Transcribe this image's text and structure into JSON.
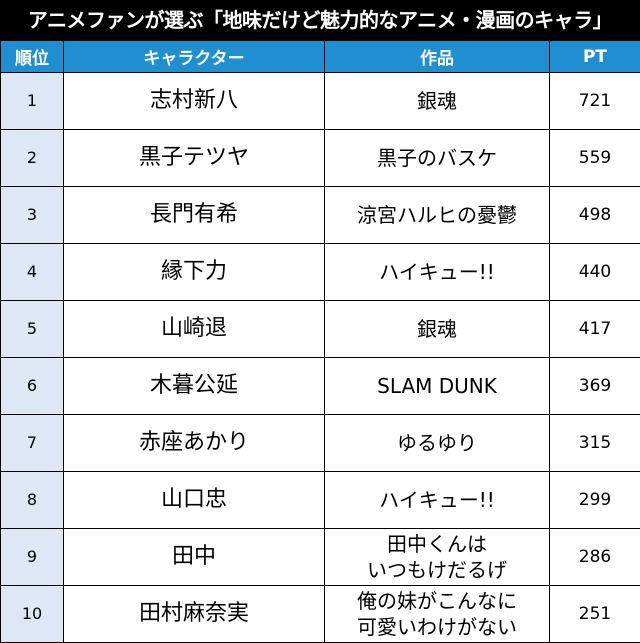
{
  "title": "アニメファンが選ぶ「地味だけど魅力的なアニメ・漫画のキャラ」",
  "table": {
    "headers": {
      "rank": "順位",
      "character": "キャラクター",
      "work": "作品",
      "points": "PT"
    },
    "rows": [
      {
        "rank": "1",
        "character": "志村新八",
        "work_lines": [
          "銀魂"
        ],
        "points": "721"
      },
      {
        "rank": "2",
        "character": "黒子テツヤ",
        "work_lines": [
          "黒子のバスケ"
        ],
        "points": "559"
      },
      {
        "rank": "3",
        "character": "長門有希",
        "work_lines": [
          "涼宮ハルヒの憂鬱"
        ],
        "points": "498"
      },
      {
        "rank": "4",
        "character": "縁下力",
        "work_lines": [
          "ハイキュー!!"
        ],
        "points": "440"
      },
      {
        "rank": "5",
        "character": "山崎退",
        "work_lines": [
          "銀魂"
        ],
        "points": "417"
      },
      {
        "rank": "6",
        "character": "木暮公延",
        "work_lines": [
          "SLAM DUNK"
        ],
        "points": "369"
      },
      {
        "rank": "7",
        "character": "赤座あかり",
        "work_lines": [
          "ゆるゆり"
        ],
        "points": "315"
      },
      {
        "rank": "8",
        "character": "山口忠",
        "work_lines": [
          "ハイキュー!!"
        ],
        "points": "299"
      },
      {
        "rank": "9",
        "character": "田中",
        "work_lines": [
          "田中くんは",
          "いつもけだるげ"
        ],
        "points": "286"
      },
      {
        "rank": "10",
        "character": "田村麻奈実",
        "work_lines": [
          "俺の妹がこんなに",
          "可愛いわけがない"
        ],
        "points": "251"
      }
    ]
  },
  "colors": {
    "title_background": "#000000",
    "header_background": "#1f8fd2",
    "rank_column_background": "#dde7f5"
  }
}
